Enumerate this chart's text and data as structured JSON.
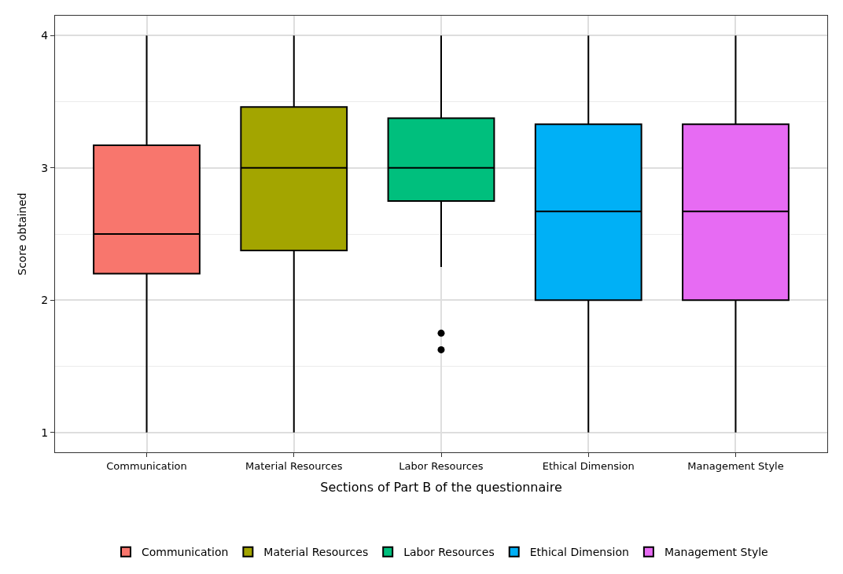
{
  "chart_data": {
    "type": "box",
    "xlabel": "Sections of Part B of the questionnaire",
    "ylabel": "Score obtained",
    "categories": [
      "Communication",
      "Material Resources",
      "Labor Resources",
      "Ethical Dimension",
      "Management Style"
    ],
    "series": [
      {
        "name": "Communication",
        "color": "#f8766d",
        "boxes": [
          {
            "low": 1,
            "q1": 2.2,
            "median": 2.5,
            "q3": 3.17,
            "high": 4
          },
          null,
          null,
          null,
          null
        ]
      },
      {
        "name": "Material Resources",
        "color": "#a3a500",
        "boxes": [
          null,
          {
            "low": 1,
            "q1": 2.375,
            "median": 3,
            "q3": 3.46,
            "high": 4
          },
          null,
          null,
          null
        ]
      },
      {
        "name": "Labor Resources",
        "color": "#00bf7d",
        "boxes": [
          null,
          null,
          {
            "low": 2.25,
            "q1": 2.75,
            "median": 3,
            "q3": 3.375,
            "high": 4,
            "outliers": [
              1.75,
              1.625
            ]
          },
          null,
          null
        ]
      },
      {
        "name": "Ethical Dimension",
        "color": "#00b0f6",
        "boxes": [
          null,
          null,
          null,
          {
            "low": 1,
            "q1": 2,
            "median": 2.67,
            "q3": 3.33,
            "high": 4
          },
          null
        ]
      },
      {
        "name": "Management Style",
        "color": "#e76bf3",
        "boxes": [
          null,
          null,
          null,
          null,
          {
            "low": 1,
            "q1": 2,
            "median": 2.67,
            "q3": 3.33,
            "high": 4
          }
        ]
      }
    ],
    "ylim": [
      0.85,
      4.15
    ],
    "yticks": [
      1,
      2,
      3,
      4
    ],
    "grid": true,
    "legend": "bottom"
  }
}
